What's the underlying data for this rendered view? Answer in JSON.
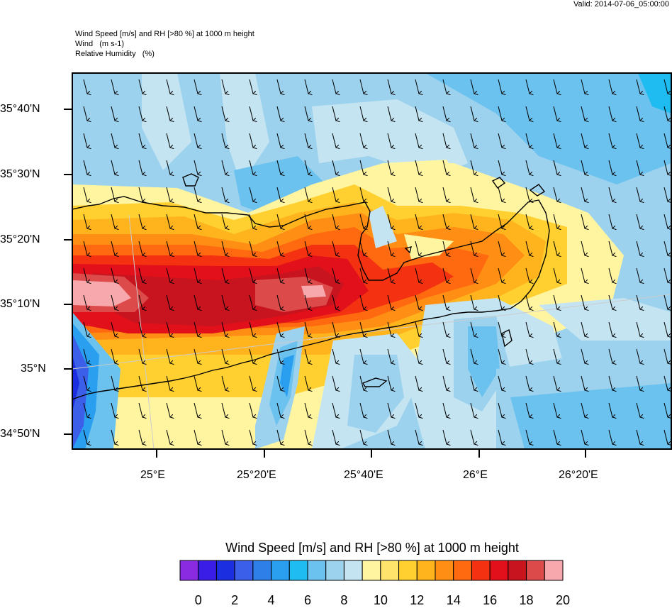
{
  "header": {
    "valid": "Valid: 2014-07-06_05:00:00",
    "title_lines": [
      "Wind Speed [m/s] and RH [>80 %] at 1000 m height",
      "Wind   (m s-1)",
      "Relative Humidity   (%)"
    ]
  },
  "map": {
    "lat_labels": [
      "35°40'N",
      "35°30'N",
      "35°20'N",
      "35°10'N",
      "35°N",
      "34°50'N"
    ],
    "lon_labels": [
      "25°E",
      "25°20'E",
      "25°40'E",
      "26°E",
      "26°20'E"
    ],
    "wind_direction": "north-northeast (arrows pointing south-southwest)"
  },
  "colorbar": {
    "title": "Wind Speed [m/s] and RH [>80 %] at 1000 m height",
    "tick_labels": [
      "0",
      "2",
      "4",
      "6",
      "8",
      "10",
      "12",
      "14",
      "16",
      "18",
      "20"
    ],
    "colors": [
      "#8a2be2",
      "#3a1ee8",
      "#1c2fe0",
      "#3b5fe8",
      "#2f7fe8",
      "#2a9ff0",
      "#1ebcf0",
      "#6cc2ee",
      "#9cd2ee",
      "#c4e4f2",
      "#fff5a0",
      "#ffe36a",
      "#ffd030",
      "#ffb41e",
      "#ff8f14",
      "#ff6a10",
      "#f43212",
      "#e2101a",
      "#c8141e",
      "#dc4a4a",
      "#f7a8ac"
    ]
  }
}
